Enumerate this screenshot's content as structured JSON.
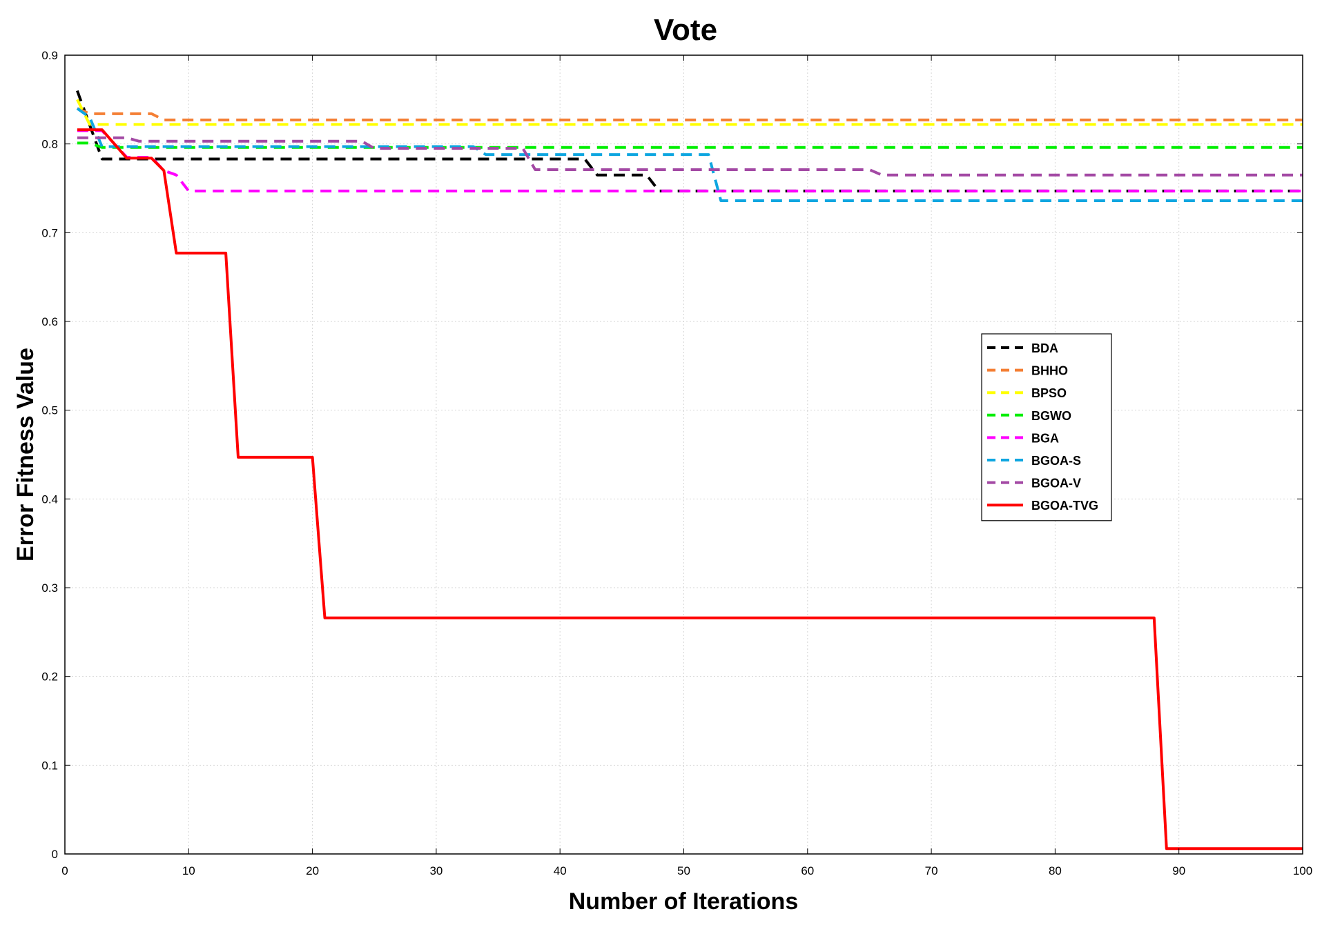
{
  "chart_data": {
    "type": "line",
    "title": "Vote",
    "xlabel": "Number of Iterations",
    "ylabel": "Error Fitness Value",
    "xlim": [
      0,
      100
    ],
    "ylim": [
      0,
      0.9
    ],
    "xticks": [
      0,
      10,
      20,
      30,
      40,
      50,
      60,
      70,
      80,
      90,
      100
    ],
    "yticks": [
      0,
      0.1,
      0.2,
      0.3,
      0.4,
      0.5,
      0.6,
      0.7,
      0.8,
      0.9
    ],
    "grid": true,
    "legend_position": "right",
    "series": [
      {
        "name": "BDA",
        "color": "#000000",
        "style": "dashed",
        "x": [
          1,
          3,
          42,
          43,
          47,
          48,
          100
        ],
        "y": [
          0.86,
          0.783,
          0.783,
          0.765,
          0.765,
          0.747,
          0.747
        ]
      },
      {
        "name": "BHHO",
        "color": "#f47f34",
        "style": "dashed",
        "x": [
          1,
          2,
          7,
          8,
          100
        ],
        "y": [
          0.84,
          0.834,
          0.834,
          0.827,
          0.827
        ]
      },
      {
        "name": "BPSO",
        "color": "#ffff00",
        "style": "dashed",
        "x": [
          1,
          2,
          100
        ],
        "y": [
          0.85,
          0.822,
          0.822
        ]
      },
      {
        "name": "BGWO",
        "color": "#00ee00",
        "style": "dashed",
        "x": [
          1,
          2,
          3,
          100
        ],
        "y": [
          0.801,
          0.801,
          0.796,
          0.796
        ]
      },
      {
        "name": "BGA",
        "color": "#ff00ff",
        "style": "dashed",
        "x": [
          1,
          3,
          5,
          7,
          8,
          9,
          10,
          100
        ],
        "y": [
          0.815,
          0.815,
          0.785,
          0.785,
          0.77,
          0.765,
          0.747,
          0.747
        ]
      },
      {
        "name": "BGOA-S",
        "color": "#0ea6e0",
        "style": "dashed",
        "x": [
          1,
          2,
          3,
          33,
          34,
          52,
          53,
          100
        ],
        "y": [
          0.84,
          0.83,
          0.797,
          0.797,
          0.788,
          0.788,
          0.736,
          0.736
        ]
      },
      {
        "name": "BGOA-V",
        "color": "#a349a4",
        "style": "dashed",
        "x": [
          1,
          5,
          6,
          24,
          25,
          37,
          38,
          65,
          66,
          100
        ],
        "y": [
          0.807,
          0.807,
          0.803,
          0.803,
          0.795,
          0.795,
          0.771,
          0.771,
          0.765,
          0.765
        ]
      },
      {
        "name": "BGOA-TVG",
        "color": "#ff0000",
        "style": "solid",
        "x": [
          1,
          3,
          5,
          7,
          8,
          9,
          13,
          14,
          20,
          21,
          88,
          89,
          100
        ],
        "y": [
          0.816,
          0.816,
          0.784,
          0.784,
          0.77,
          0.677,
          0.677,
          0.447,
          0.447,
          0.266,
          0.266,
          0.006,
          0.006
        ]
      }
    ]
  }
}
